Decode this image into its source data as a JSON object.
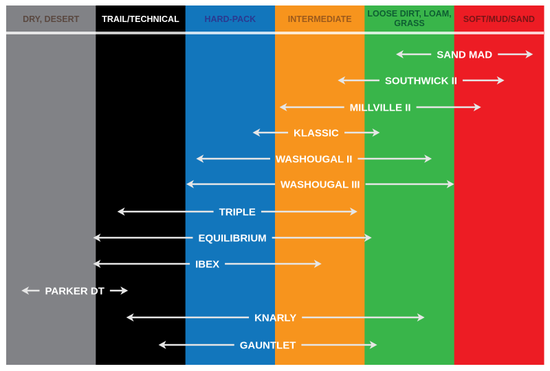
{
  "chart_data": {
    "type": "range-diagram",
    "columns": [
      {
        "label": "DRY, DESERT",
        "color": "#818286",
        "text_color": "#5a4840"
      },
      {
        "label": "TRAIL/TECHNICAL",
        "color": "#000000",
        "text_color": "#ffffff"
      },
      {
        "label": "HARD-PACK",
        "color": "#1276bc",
        "text_color": "#2b3990"
      },
      {
        "label": "INTERMEDIATE",
        "color": "#f7941d",
        "text_color": "#9c5a1c"
      },
      {
        "label": [
          "LOOSE DIRT, LOAM,",
          "GRASS"
        ],
        "color": "#39b54a",
        "text_color": "#0e5e32"
      },
      {
        "label": "SOFT/MUD/SAND",
        "color": "#ed1c24",
        "text_color": "#7a1416"
      }
    ],
    "arrow_color": "#e6e6e6",
    "ranges": [
      {
        "name": "SAND MAD",
        "from": 4.35,
        "to": 5.88
      },
      {
        "name": "SOUTHWICK II",
        "from": 3.7,
        "to": 5.56
      },
      {
        "name": "MILLVILLE II",
        "from": 3.05,
        "to": 5.3
      },
      {
        "name": "KLASSIC",
        "from": 2.75,
        "to": 4.17
      },
      {
        "name": "WASHOUGAL II",
        "from": 2.12,
        "to": 4.75
      },
      {
        "name": "WASHOUGAL III",
        "from": 2.01,
        "to": 5.0
      },
      {
        "name": "TRIPLE",
        "from": 1.24,
        "to": 3.92
      },
      {
        "name": "EQUILIBRIUM",
        "from": 0.97,
        "to": 4.08
      },
      {
        "name": "IBEX",
        "from": 0.97,
        "to": 3.52
      },
      {
        "name": "PARKER DT",
        "from": 0.17,
        "to": 1.36
      },
      {
        "name": "KNARLY",
        "from": 1.34,
        "to": 4.67
      },
      {
        "name": "GAUNTLET",
        "from": 1.7,
        "to": 4.14
      }
    ]
  }
}
